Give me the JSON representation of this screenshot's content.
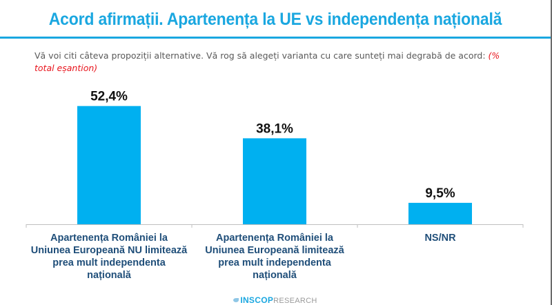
{
  "header": {
    "title": "Acord afirmații. Apartenența la UE vs independența națională",
    "subtitle_text": "Vă voi citi câteva propoziții alternative. Vă rog să alegeți varianta cu care sunteți mai degrabă de acord: ",
    "subtitle_note": "(% total eșantion)"
  },
  "colors": {
    "accent": "#1aa7e0",
    "bar": "#00b0f0",
    "category_text": "#1f4e79",
    "note": "#e8141c"
  },
  "chart_data": {
    "type": "bar",
    "title": "Acord afirmații. Apartenența la UE vs independența națională",
    "xlabel": "",
    "ylabel": "",
    "ylim": [
      0,
      60
    ],
    "grid": false,
    "legend": "none",
    "categories": [
      [
        "Apartenența României la",
        "Uniunea Europeană NU limitează",
        "prea mult independenta",
        "națională"
      ],
      [
        "Apartenența României la",
        "Uniunea Europeană limitează",
        "prea mult independenta",
        "națională"
      ],
      [
        "NS/NR"
      ]
    ],
    "values": [
      52.4,
      38.1,
      9.5
    ],
    "value_labels": [
      "52,4%",
      "38,1%",
      "9,5%"
    ],
    "unit": "%"
  },
  "footer": {
    "brand_strong": "INSCOP",
    "brand_light": "RESEARCH"
  }
}
